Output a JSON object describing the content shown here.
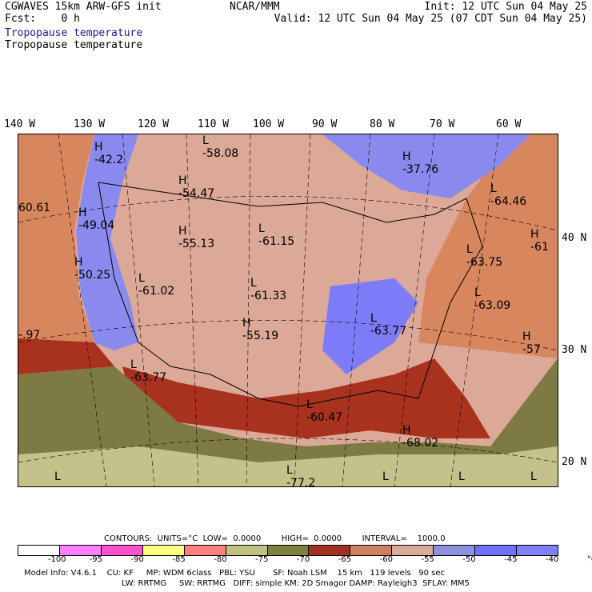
{
  "header": {
    "model": "CGWAVES 15km ARW-GFS init",
    "fcst": "Fcst:    0 h",
    "field1": "Tropopause temperature",
    "field2": "Tropopause temperature",
    "center": "NCAR/MMM",
    "init": "Init: 12 UTC Sun 04 May 25",
    "valid": "Valid: 12 UTC Sun 04 May 25 (07 CDT Sun 04 May 25)"
  },
  "longitudes": [
    "140 W",
    "130 W",
    "120 W",
    "110 W",
    "100 W",
    "90 W",
    "80 W",
    "70 W",
    "60 W"
  ],
  "latitudes": [
    "40 N",
    "30 N",
    "20 N"
  ],
  "map_labels": [
    {
      "t": "H",
      "v": "-42.2"
    },
    {
      "t": "L",
      "v": "-58.08"
    },
    {
      "t": "H",
      "v": "-37.76"
    },
    {
      "t": "H",
      "v": "-54.47"
    },
    {
      "t": "",
      "v": "60.61"
    },
    {
      "t": "H",
      "v": "-49.04"
    },
    {
      "t": "H",
      "v": "-55.13"
    },
    {
      "t": "L",
      "v": "-61.15"
    },
    {
      "t": "L",
      "v": "-64.46"
    },
    {
      "t": "H",
      "v": "-61"
    },
    {
      "t": "H",
      "v": "-50.25"
    },
    {
      "t": "L",
      "v": "-61.02"
    },
    {
      "t": "L",
      "v": "-61.33"
    },
    {
      "t": "L",
      "v": "-63.75"
    },
    {
      "t": "L",
      "v": "-63.09"
    },
    {
      "t": "",
      "v": "-.97"
    },
    {
      "t": "H",
      "v": "-55.19"
    },
    {
      "t": "L",
      "v": "-63.77"
    },
    {
      "t": "H",
      "v": "-57"
    },
    {
      "t": "L",
      "v": "-63.77"
    },
    {
      "t": "L",
      "v": "-60.47"
    },
    {
      "t": "H",
      "v": "-68.02"
    },
    {
      "t": "L",
      "v": ""
    },
    {
      "t": "L",
      "v": "-77.2"
    },
    {
      "t": "L",
      "v": ""
    },
    {
      "t": "L",
      "v": ""
    },
    {
      "t": "L",
      "v": ""
    }
  ],
  "contours_line": "CONTOURS:  UNITS=°C  LOW=  0.0000        HIGH=  0.0000        INTERVAL=    1000.0",
  "legend": {
    "colors": [
      "#ffffff",
      "#ff80ff",
      "#ff50d0",
      "#ffff80",
      "#ff8080",
      "#c0c080",
      "#808040",
      "#a03020",
      "#d08060",
      "#dcaa98",
      "#9090e0",
      "#7070f8",
      "#8080ff"
    ],
    "labels": [
      "-100",
      "-95",
      "-90",
      "-85",
      "-80",
      "-75",
      "-70",
      "-65",
      "-60",
      "-55",
      "-50",
      "-45",
      "-40",
      "°C"
    ]
  },
  "model_info": {
    "line1": "Model Info: V4.6.1    CU: KF     MP: WDM 6class   PBL: YSU       SF: Noah LSM    15 km   119 levels   90 sec",
    "line2": "LW: RRTMG     SW: RRTMG   DIFF: simple KM: 2D Smagor DAMP: Rayleigh3  SFLAY: MM5"
  }
}
